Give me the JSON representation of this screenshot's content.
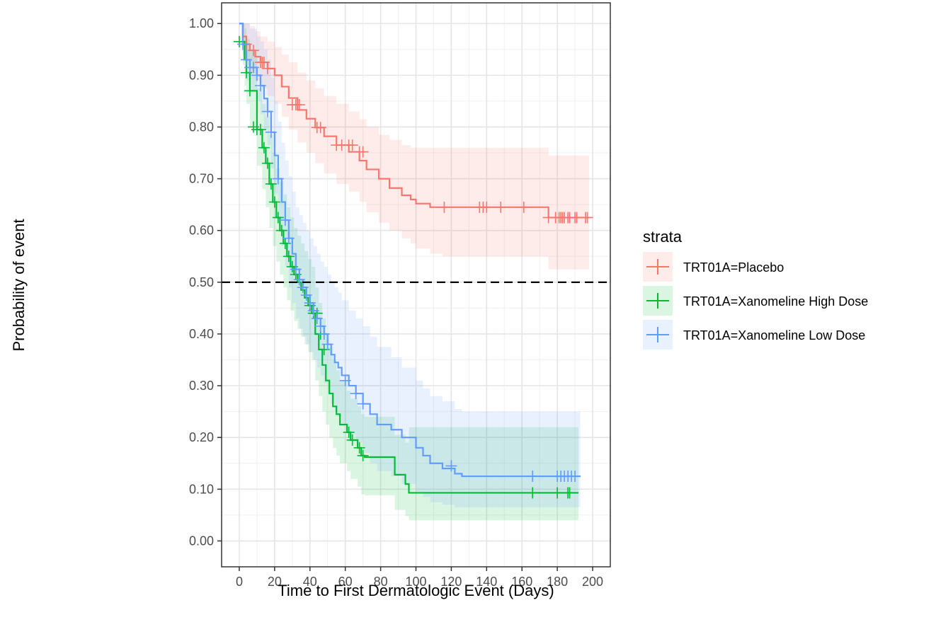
{
  "chart_data": {
    "type": "line",
    "subtype": "kaplan-meier",
    "xlabel": "Time to First Dermatologic Event (Days)",
    "ylabel": "Probability of event",
    "xlim": [
      -10,
      210
    ],
    "ylim": [
      -0.05,
      1.04
    ],
    "x_ticks": [
      0,
      20,
      40,
      60,
      80,
      100,
      120,
      140,
      160,
      180,
      200
    ],
    "x_tick_labels": [
      "0",
      "20",
      "40",
      "60",
      "80",
      "100",
      "120",
      "140",
      "160",
      "180",
      "200"
    ],
    "y_ticks": [
      0,
      0.1,
      0.2,
      0.3,
      0.4,
      0.5,
      0.6,
      0.7,
      0.8,
      0.9,
      1.0
    ],
    "y_tick_labels": [
      "0.00",
      "0.10",
      "0.20",
      "0.30",
      "0.40",
      "0.50",
      "0.60",
      "0.70",
      "0.80",
      "0.90",
      "1.00"
    ],
    "grid": true,
    "reference_line": {
      "y": 0.5,
      "style": "dashed",
      "color": "#000000"
    },
    "legend": {
      "title": "strata",
      "position": "right"
    },
    "series": [
      {
        "name": "TRT01A=Placebo",
        "color": "#F8766D",
        "x": [
          0,
          2,
          4,
          6,
          9,
          12,
          16,
          20,
          24,
          28,
          33,
          38,
          43,
          48,
          55,
          62,
          68,
          72,
          79,
          85,
          92,
          97,
          100,
          108,
          115,
          175,
          178,
          198
        ],
        "y": [
          1.0,
          0.975,
          0.96,
          0.948,
          0.936,
          0.925,
          0.913,
          0.9,
          0.878,
          0.856,
          0.833,
          0.816,
          0.799,
          0.782,
          0.765,
          0.752,
          0.735,
          0.718,
          0.7,
          0.682,
          0.668,
          0.66,
          0.652,
          0.645,
          0.645,
          0.625,
          0.625,
          0.625
        ],
        "ci_lower": [
          1.0,
          0.94,
          0.92,
          0.905,
          0.89,
          0.875,
          0.86,
          0.845,
          0.82,
          0.795,
          0.77,
          0.75,
          0.73,
          0.71,
          0.69,
          0.675,
          0.655,
          0.635,
          0.615,
          0.6,
          0.585,
          0.575,
          0.565,
          0.555,
          0.55,
          0.525,
          0.525,
          0.525
        ],
        "ci_upper": [
          1.0,
          1.0,
          1.0,
          0.995,
          0.985,
          0.975,
          0.965,
          0.955,
          0.94,
          0.925,
          0.905,
          0.89,
          0.875,
          0.86,
          0.845,
          0.83,
          0.815,
          0.8,
          0.785,
          0.775,
          0.765,
          0.76,
          0.76,
          0.76,
          0.76,
          0.745,
          0.745,
          0.745
        ],
        "censor_x": [
          4,
          8,
          12,
          13,
          14,
          16,
          30,
          32,
          34,
          44,
          46,
          55,
          58,
          62,
          64,
          68,
          70,
          116,
          136,
          138,
          140,
          148,
          161,
          175,
          179,
          181,
          182,
          183,
          184,
          186,
          187,
          190,
          191,
          196,
          197
        ],
        "censor_y": [
          0.96,
          0.948,
          0.925,
          0.925,
          0.925,
          0.913,
          0.843,
          0.843,
          0.843,
          0.799,
          0.799,
          0.765,
          0.765,
          0.765,
          0.765,
          0.752,
          0.752,
          0.645,
          0.645,
          0.645,
          0.645,
          0.645,
          0.645,
          0.625,
          0.625,
          0.625,
          0.625,
          0.625,
          0.625,
          0.625,
          0.625,
          0.625,
          0.625,
          0.625,
          0.625
        ]
      },
      {
        "name": "TRT01A=Xanomeline High Dose",
        "color": "#00BA38",
        "x": [
          0,
          2,
          3,
          4,
          6,
          10,
          13,
          15,
          17,
          19,
          21,
          23,
          25,
          27,
          29,
          31,
          33,
          35,
          37,
          39,
          41,
          43,
          45,
          47,
          49,
          51,
          53,
          55,
          57,
          61,
          63,
          67,
          69,
          71,
          88,
          94,
          96,
          192
        ],
        "y": [
          1.0,
          0.965,
          0.93,
          0.905,
          0.87,
          0.795,
          0.76,
          0.73,
          0.69,
          0.655,
          0.625,
          0.6,
          0.575,
          0.55,
          0.53,
          0.515,
          0.5,
          0.485,
          0.47,
          0.455,
          0.44,
          0.4,
          0.37,
          0.34,
          0.31,
          0.285,
          0.26,
          0.245,
          0.225,
          0.21,
          0.195,
          0.18,
          0.165,
          0.162,
          0.128,
          0.11,
          0.093,
          0.093
        ],
        "ci_lower": [
          1.0,
          0.92,
          0.88,
          0.845,
          0.8,
          0.725,
          0.68,
          0.645,
          0.605,
          0.57,
          0.54,
          0.515,
          0.49,
          0.465,
          0.445,
          0.425,
          0.41,
          0.395,
          0.38,
          0.365,
          0.35,
          0.31,
          0.28,
          0.25,
          0.225,
          0.2,
          0.18,
          0.165,
          0.15,
          0.135,
          0.12,
          0.105,
          0.09,
          0.088,
          0.06,
          0.048,
          0.04,
          0.04
        ],
        "ci_upper": [
          1.0,
          1.0,
          0.99,
          0.97,
          0.945,
          0.875,
          0.845,
          0.82,
          0.785,
          0.75,
          0.72,
          0.695,
          0.67,
          0.645,
          0.625,
          0.605,
          0.59,
          0.575,
          0.56,
          0.545,
          0.53,
          0.49,
          0.46,
          0.43,
          0.4,
          0.375,
          0.35,
          0.33,
          0.31,
          0.29,
          0.275,
          0.26,
          0.245,
          0.24,
          0.205,
          0.19,
          0.22,
          0.22
        ],
        "censor_x": [
          0,
          4,
          6,
          8,
          10,
          12,
          14,
          16,
          18,
          20,
          22,
          24,
          26,
          28,
          30,
          32,
          40,
          42,
          44,
          46,
          48,
          62,
          64,
          68,
          70,
          166,
          180,
          186,
          187
        ],
        "censor_y": [
          0.965,
          0.905,
          0.87,
          0.8,
          0.795,
          0.795,
          0.76,
          0.73,
          0.69,
          0.655,
          0.625,
          0.6,
          0.575,
          0.55,
          0.53,
          0.515,
          0.455,
          0.44,
          0.44,
          0.4,
          0.37,
          0.21,
          0.195,
          0.18,
          0.165,
          0.093,
          0.093,
          0.093,
          0.093
        ]
      },
      {
        "name": "TRT01A=Xanomeline Low Dose",
        "color": "#619CFF",
        "x": [
          0,
          2,
          4,
          6,
          10,
          12,
          14,
          16,
          18,
          20,
          22,
          24,
          26,
          28,
          30,
          32,
          34,
          36,
          38,
          40,
          42,
          44,
          46,
          48,
          50,
          52,
          54,
          56,
          58,
          62,
          66,
          70,
          74,
          78,
          86,
          92,
          100,
          104,
          108,
          115,
          122,
          126,
          193
        ],
        "y": [
          1.0,
          0.96,
          0.93,
          0.915,
          0.9,
          0.88,
          0.855,
          0.83,
          0.79,
          0.745,
          0.7,
          0.655,
          0.62,
          0.585,
          0.555,
          0.525,
          0.505,
          0.49,
          0.475,
          0.46,
          0.445,
          0.43,
          0.415,
          0.4,
          0.38,
          0.36,
          0.345,
          0.335,
          0.32,
          0.3,
          0.285,
          0.265,
          0.245,
          0.225,
          0.215,
          0.2,
          0.18,
          0.165,
          0.15,
          0.14,
          0.13,
          0.125,
          0.125
        ],
        "ci_lower": [
          1.0,
          0.93,
          0.89,
          0.87,
          0.85,
          0.825,
          0.795,
          0.765,
          0.72,
          0.67,
          0.62,
          0.57,
          0.53,
          0.49,
          0.46,
          0.43,
          0.41,
          0.395,
          0.38,
          0.365,
          0.35,
          0.335,
          0.32,
          0.305,
          0.285,
          0.265,
          0.25,
          0.24,
          0.225,
          0.205,
          0.19,
          0.17,
          0.15,
          0.135,
          0.125,
          0.11,
          0.095,
          0.085,
          0.075,
          0.07,
          0.065,
          0.065,
          0.065
        ],
        "ci_upper": [
          1.0,
          1.0,
          1.0,
          0.99,
          0.975,
          0.965,
          0.95,
          0.93,
          0.895,
          0.85,
          0.81,
          0.77,
          0.735,
          0.705,
          0.675,
          0.645,
          0.63,
          0.615,
          0.6,
          0.585,
          0.57,
          0.555,
          0.54,
          0.53,
          0.515,
          0.5,
          0.49,
          0.48,
          0.465,
          0.445,
          0.43,
          0.415,
          0.395,
          0.375,
          0.355,
          0.335,
          0.31,
          0.295,
          0.28,
          0.27,
          0.255,
          0.25,
          0.25
        ],
        "censor_x": [
          2,
          4,
          6,
          8,
          10,
          12,
          16,
          18,
          22,
          26,
          28,
          32,
          34,
          36,
          38,
          40,
          42,
          44,
          46,
          48,
          50,
          60,
          66,
          70,
          120,
          166,
          180,
          182,
          184,
          186,
          188,
          190
        ],
        "censor_y": [
          0.96,
          0.93,
          0.915,
          0.915,
          0.9,
          0.88,
          0.83,
          0.79,
          0.7,
          0.62,
          0.585,
          0.525,
          0.505,
          0.49,
          0.475,
          0.46,
          0.445,
          0.43,
          0.415,
          0.4,
          0.38,
          0.31,
          0.285,
          0.265,
          0.145,
          0.125,
          0.125,
          0.125,
          0.125,
          0.125,
          0.125,
          0.125
        ]
      }
    ]
  }
}
